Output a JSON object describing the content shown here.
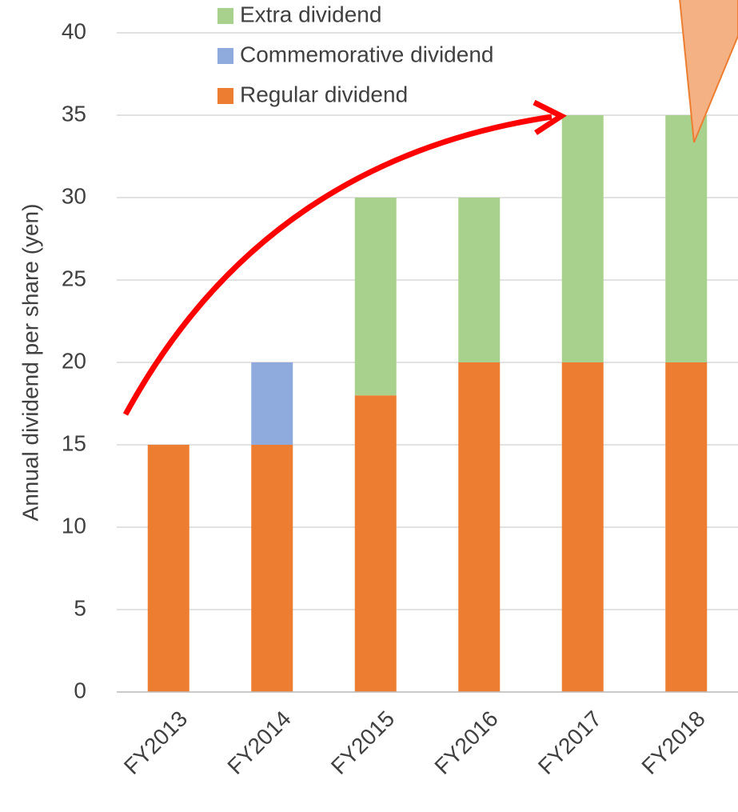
{
  "chart_data": {
    "type": "stacked_bar",
    "y_label": "Annual dividend per share (yen)",
    "categories": [
      "FY2013",
      "FY2014",
      "FY2015",
      "FY2016",
      "FY2017",
      "FY2018"
    ],
    "series": [
      {
        "name": "Regular dividend",
        "color": "#ED7D31",
        "values": [
          15,
          15,
          18,
          20,
          20,
          20
        ]
      },
      {
        "name": "Commemorative dividend",
        "color": "#8FAADC",
        "values": [
          0,
          5,
          0,
          0,
          0,
          0
        ]
      },
      {
        "name": "Extra dividend",
        "color": "#A9D18E",
        "values": [
          0,
          0,
          12,
          10,
          15,
          15
        ]
      }
    ],
    "ylim": [
      0,
      40
    ],
    "yticks": [
      0,
      5,
      10,
      15,
      20,
      25,
      30,
      35,
      40
    ],
    "grid": true
  }
}
